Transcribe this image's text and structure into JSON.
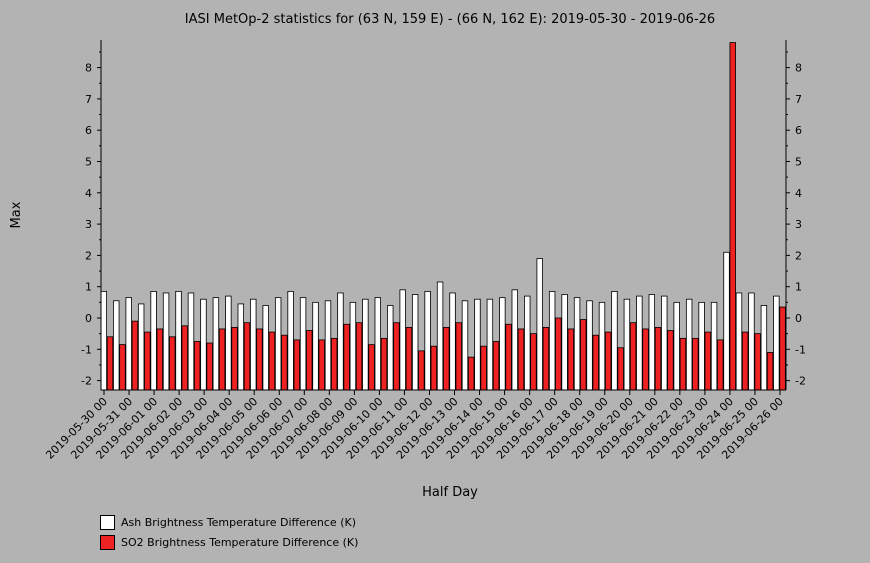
{
  "chart_data": {
    "type": "bar",
    "title": "IASI MetOp-2 statistics for (63 N, 159 E) - (66 N, 162 E): 2019-05-30 - 2019-06-26",
    "xlabel": "Half Day",
    "ylabel": "Max",
    "ylim": [
      -2.25,
      8.8
    ],
    "yticks": [
      -2,
      -1,
      0,
      1,
      2,
      3,
      4,
      5,
      6,
      7,
      8
    ],
    "xtick_labels": [
      "2019-05-30 00",
      "2019-05-31 00",
      "2019-06-01 00",
      "2019-06-02 00",
      "2019-06-03 00",
      "2019-06-04 00",
      "2019-06-05 00",
      "2019-06-06 00",
      "2019-06-07 00",
      "2019-06-08 00",
      "2019-06-09 00",
      "2019-06-10 00",
      "2019-06-11 00",
      "2019-06-12 00",
      "2019-06-13 00",
      "2019-06-14 00",
      "2019-06-15 00",
      "2019-06-16 00",
      "2019-06-17 00",
      "2019-06-18 00",
      "2019-06-19 00",
      "2019-06-20 00",
      "2019-06-21 00",
      "2019-06-22 00",
      "2019-06-23 00",
      "2019-06-24 00",
      "2019-06-25 00",
      "2019-06-26 00"
    ],
    "grid": false,
    "legend_position": "bottom-left",
    "series": [
      {
        "name": "Ash Brightness Temperature Difference (K)",
        "color": "#ffffff",
        "values": [
          0.85,
          0.55,
          0.65,
          0.45,
          0.85,
          0.8,
          0.85,
          0.8,
          0.6,
          0.65,
          0.7,
          0.45,
          0.6,
          0.4,
          0.65,
          0.85,
          0.65,
          0.5,
          0.55,
          0.8,
          0.5,
          0.6,
          0.65,
          0.4,
          0.9,
          0.75,
          0.85,
          1.15,
          0.8,
          0.55,
          0.6,
          0.6,
          0.65,
          0.9,
          0.7,
          1.9,
          0.85,
          0.75,
          0.65,
          0.55,
          0.5,
          0.85,
          0.6,
          0.7,
          0.75,
          0.7,
          0.5,
          0.6,
          0.5,
          0.5,
          2.1,
          0.8,
          0.8,
          0.4,
          0.7
        ]
      },
      {
        "name": "SO2 Brightness Temperature Difference (K)",
        "color": "#ee2222",
        "values": [
          -0.6,
          -0.85,
          -0.1,
          -0.45,
          -0.35,
          -0.6,
          -0.25,
          -0.75,
          -0.8,
          -0.35,
          -0.3,
          -0.15,
          -0.35,
          -0.45,
          -0.55,
          -0.7,
          -0.4,
          -0.7,
          -0.65,
          -0.2,
          -0.15,
          -0.85,
          -0.65,
          -0.15,
          -0.3,
          -1.05,
          -0.9,
          -0.3,
          -0.15,
          -1.25,
          -0.9,
          -0.75,
          -0.2,
          -0.35,
          -0.5,
          -0.3,
          0.0,
          -0.35,
          -0.05,
          -0.55,
          -0.45,
          -0.95,
          -0.15,
          -0.35,
          -0.3,
          -0.4,
          -0.65,
          -0.65,
          -0.45,
          -0.7,
          8.8,
          -0.45,
          -0.5,
          -1.1,
          0.35
        ]
      }
    ]
  }
}
